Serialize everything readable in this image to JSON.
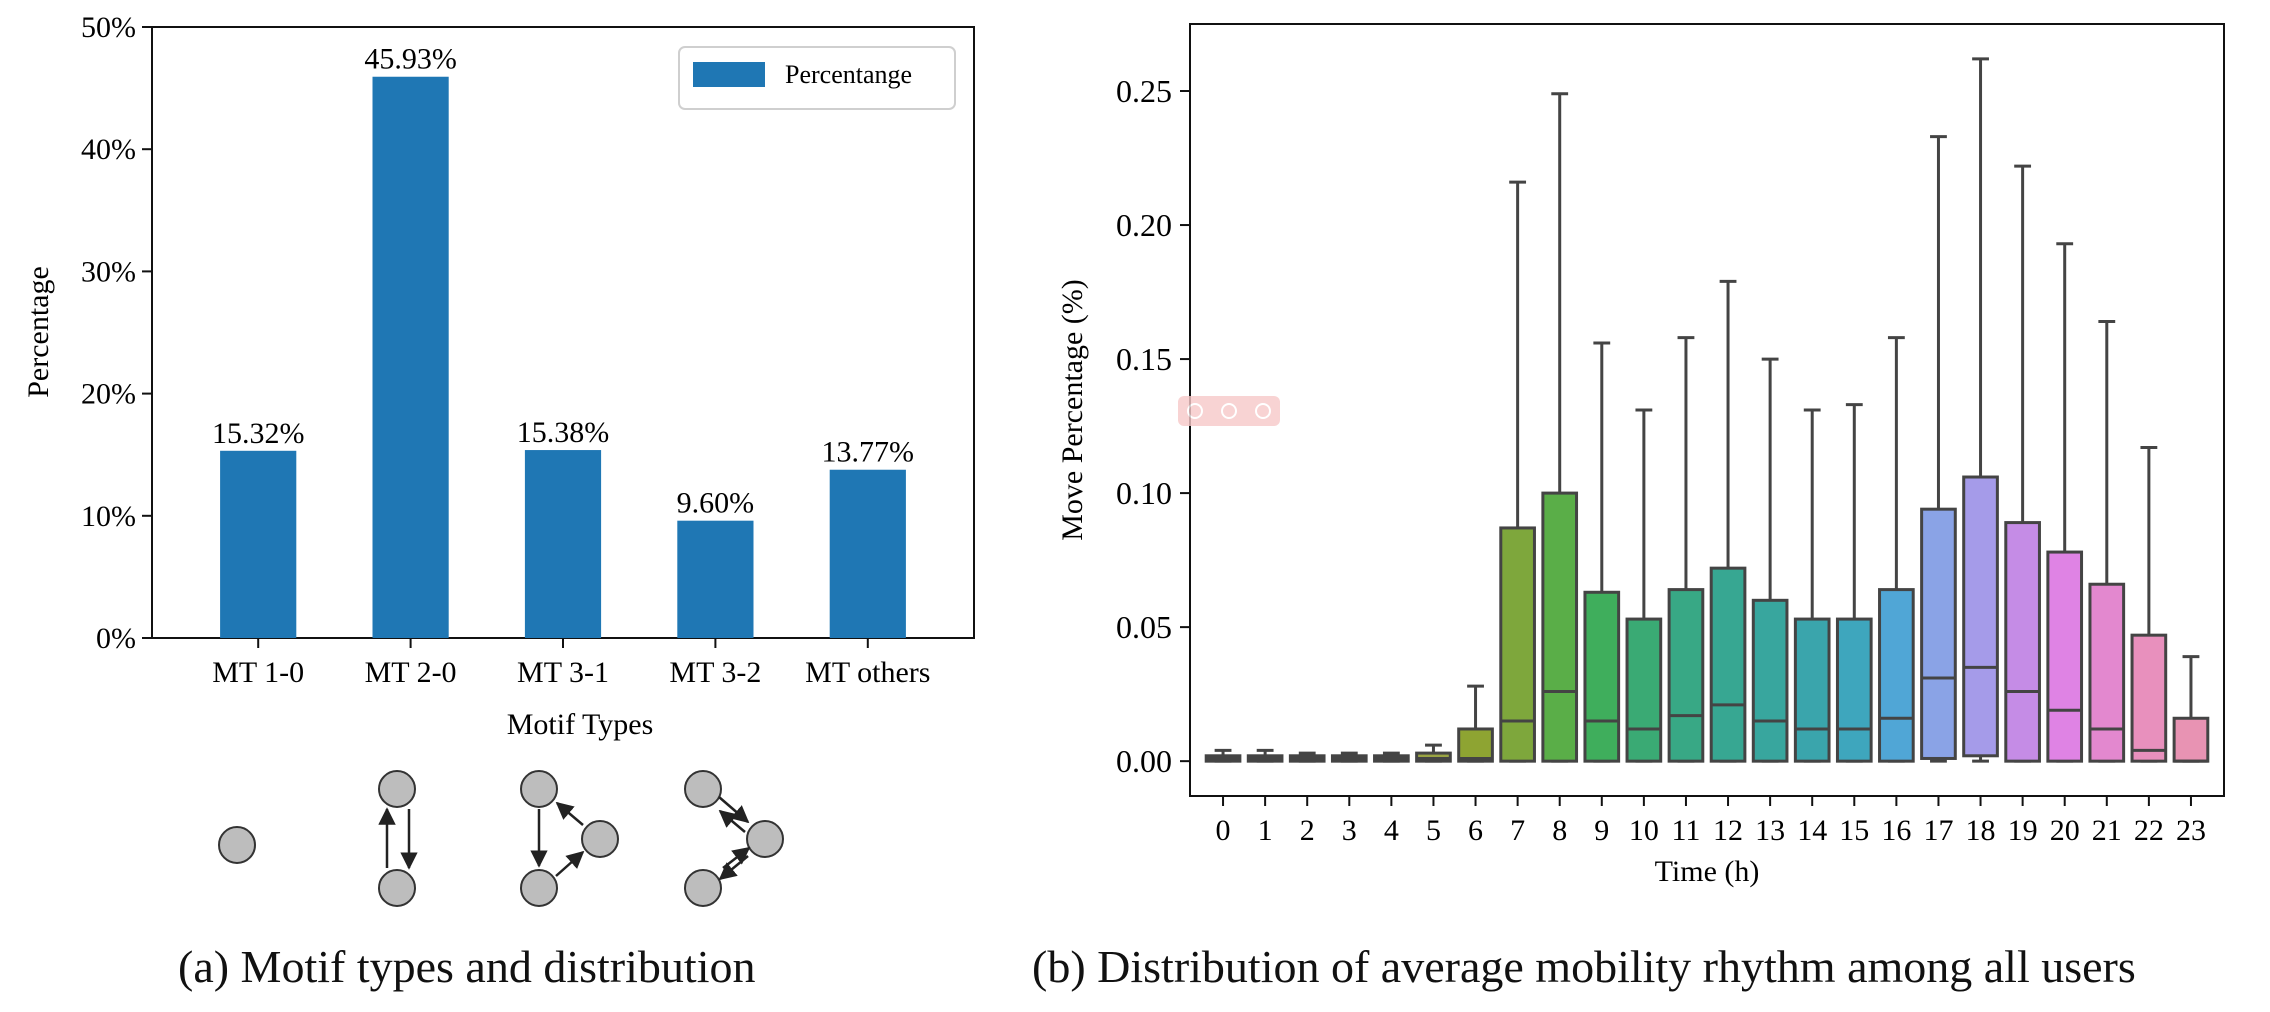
{
  "chart_data": [
    {
      "type": "bar",
      "categories": [
        "MT 1-0",
        "MT 2-0",
        "MT 3-1",
        "MT 3-2",
        "MT others"
      ],
      "values": [
        15.32,
        45.93,
        15.38,
        9.6,
        13.77
      ],
      "data_labels": [
        "15.32%",
        "45.93%",
        "15.38%",
        "9.60%",
        "13.77%"
      ],
      "yticks": [
        "0%",
        "10%",
        "20%",
        "30%",
        "40%",
        "50%"
      ],
      "ylim": [
        0,
        50
      ],
      "xlabel": "Motif Types",
      "ylabel": "Percentage",
      "legend": {
        "label": "Percentange",
        "position": "top-right"
      },
      "grid": false,
      "bar_color": "#1f77b4",
      "motif_icons": [
        {
          "type": "MT 1-0",
          "icon": "single-node-motif-icon"
        },
        {
          "type": "MT 2-0",
          "icon": "two-node-cycle-motif-icon"
        },
        {
          "type": "MT 3-1",
          "icon": "three-node-cycle-motif-icon"
        },
        {
          "type": "MT 3-2",
          "icon": "three-node-hub-motif-icon"
        }
      ],
      "caption": "(a) Motif types and distribution"
    },
    {
      "type": "box",
      "xlabel": "Time (h)",
      "ylabel": "Move Percentage (%)",
      "ylim": [
        -0.013,
        0.275
      ],
      "yticks": [
        "0.00",
        "0.05",
        "0.10",
        "0.15",
        "0.20",
        "0.25"
      ],
      "grid": false,
      "categories": [
        "0",
        "1",
        "2",
        "3",
        "4",
        "5",
        "6",
        "7",
        "8",
        "9",
        "10",
        "11",
        "12",
        "13",
        "14",
        "15",
        "16",
        "17",
        "18",
        "19",
        "20",
        "21",
        "22",
        "23"
      ],
      "boxes": [
        {
          "hour": "0",
          "min": 0.0,
          "q1": 0.0,
          "median": 0.001,
          "q3": 0.002,
          "max": 0.004,
          "color": "#c48f87"
        },
        {
          "hour": "1",
          "min": 0.0,
          "q1": 0.0,
          "median": 0.001,
          "q3": 0.002,
          "max": 0.004,
          "color": "#c29281"
        },
        {
          "hour": "2",
          "min": 0.0,
          "q1": 0.0,
          "median": 0.001,
          "q3": 0.002,
          "max": 0.003,
          "color": "#bc977a"
        },
        {
          "hour": "3",
          "min": 0.0,
          "q1": 0.0,
          "median": 0.001,
          "q3": 0.002,
          "max": 0.003,
          "color": "#b39c6d"
        },
        {
          "hour": "4",
          "min": 0.0,
          "q1": 0.0,
          "median": 0.001,
          "q3": 0.002,
          "max": 0.003,
          "color": "#a7a15a"
        },
        {
          "hour": "5",
          "min": 0.0,
          "q1": 0.0,
          "median": 0.001,
          "q3": 0.003,
          "max": 0.006,
          "color": "#9aa443"
        },
        {
          "hour": "6",
          "min": 0.0,
          "q1": 0.0,
          "median": 0.001,
          "q3": 0.012,
          "max": 0.028,
          "color": "#8ea432"
        },
        {
          "hour": "7",
          "min": 0.0,
          "q1": 0.0,
          "median": 0.015,
          "q3": 0.087,
          "max": 0.216,
          "color": "#7ea73c"
        },
        {
          "hour": "8",
          "min": 0.0,
          "q1": 0.0,
          "median": 0.026,
          "q3": 0.1,
          "max": 0.249,
          "color": "#5aae48"
        },
        {
          "hour": "9",
          "min": 0.0,
          "q1": 0.0,
          "median": 0.015,
          "q3": 0.063,
          "max": 0.156,
          "color": "#3fae5c"
        },
        {
          "hour": "10",
          "min": 0.0,
          "q1": 0.0,
          "median": 0.012,
          "q3": 0.053,
          "max": 0.131,
          "color": "#3aaa74"
        },
        {
          "hour": "11",
          "min": 0.0,
          "q1": 0.0,
          "median": 0.017,
          "q3": 0.064,
          "max": 0.158,
          "color": "#38a885"
        },
        {
          "hour": "12",
          "min": 0.0,
          "q1": 0.0,
          "median": 0.021,
          "q3": 0.072,
          "max": 0.179,
          "color": "#37a792"
        },
        {
          "hour": "13",
          "min": 0.0,
          "q1": 0.0,
          "median": 0.015,
          "q3": 0.06,
          "max": 0.15,
          "color": "#38a69e"
        },
        {
          "hour": "14",
          "min": 0.0,
          "q1": 0.0,
          "median": 0.012,
          "q3": 0.053,
          "max": 0.131,
          "color": "#3aa5ac"
        },
        {
          "hour": "15",
          "min": 0.0,
          "q1": 0.0,
          "median": 0.012,
          "q3": 0.053,
          "max": 0.133,
          "color": "#3ea6bd"
        },
        {
          "hour": "16",
          "min": 0.0,
          "q1": 0.0,
          "median": 0.016,
          "q3": 0.064,
          "max": 0.158,
          "color": "#50a6d6"
        },
        {
          "hour": "17",
          "min": 0.0,
          "q1": 0.001,
          "median": 0.031,
          "q3": 0.094,
          "max": 0.233,
          "color": "#8aa3e6"
        },
        {
          "hour": "18",
          "min": 0.0,
          "q1": 0.002,
          "median": 0.035,
          "q3": 0.106,
          "max": 0.262,
          "color": "#a59be9"
        },
        {
          "hour": "19",
          "min": 0.0,
          "q1": 0.0,
          "median": 0.026,
          "q3": 0.089,
          "max": 0.222,
          "color": "#c58ce6"
        },
        {
          "hour": "20",
          "min": 0.0,
          "q1": 0.0,
          "median": 0.019,
          "q3": 0.078,
          "max": 0.193,
          "color": "#df83e4"
        },
        {
          "hour": "21",
          "min": 0.0,
          "q1": 0.0,
          "median": 0.012,
          "q3": 0.066,
          "max": 0.164,
          "color": "#e388cf"
        },
        {
          "hour": "22",
          "min": 0.0,
          "q1": 0.0,
          "median": 0.004,
          "q3": 0.047,
          "max": 0.117,
          "color": "#e890bd"
        },
        {
          "hour": "23",
          "min": 0.0,
          "q1": 0.0,
          "median": 0.0,
          "q3": 0.016,
          "max": 0.039,
          "color": "#e893b3"
        }
      ],
      "caption": "(b) Distribution of average mobility rhythm among all users"
    }
  ]
}
